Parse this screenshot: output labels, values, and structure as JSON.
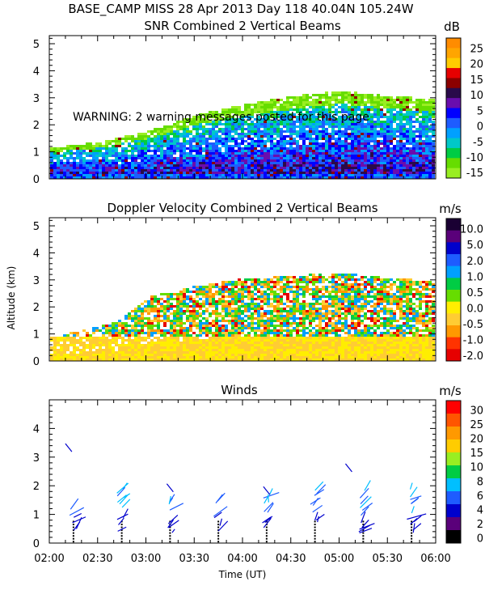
{
  "header": "BASE_CAMP MISS  28 Apr 2013 Day 118 40.04N 105.24W",
  "warning": "WARNING: 2 warning messages posted for this page",
  "y_axis_label": "Altitude (km)",
  "x_axis_label": "Time (UT)",
  "time_ticks": [
    "02:00",
    "02:30",
    "03:00",
    "03:30",
    "04:00",
    "04:30",
    "05:00",
    "05:30",
    "06:00"
  ],
  "chart_data": [
    {
      "type": "heatmap",
      "title": "SNR Combined 2 Vertical Beams",
      "xlabel": "",
      "ylabel": "",
      "x_range": [
        "02:00",
        "06:00"
      ],
      "ylim": [
        0,
        5.3
      ],
      "y_ticks": [
        "0",
        "1",
        "2",
        "3",
        "4",
        "5"
      ],
      "colorbar": {
        "unit": "dB",
        "labels": [
          "25",
          "20",
          "15",
          "10",
          "5",
          "0",
          "-5",
          "-10",
          "-15"
        ],
        "colors": [
          "#ff8c00",
          "#ffa500",
          "#ffcc00",
          "#e60000",
          "#8b0000",
          "#2a0a4a",
          "#6a0dad",
          "#0000ff",
          "#1e5cff",
          "#00a0ff",
          "#00c8c8",
          "#00cc44",
          "#66dd00",
          "#99ee22"
        ]
      },
      "echo_top_km": [
        [
          0,
          1.2
        ],
        [
          0.5,
          1.4
        ],
        [
          1.0,
          1.8
        ],
        [
          1.5,
          2.4
        ],
        [
          2.0,
          2.8
        ],
        [
          2.5,
          3.1
        ],
        [
          3.0,
          3.3
        ],
        [
          3.5,
          3.1
        ],
        [
          4.0,
          3.0
        ]
      ]
    },
    {
      "type": "heatmap",
      "title": "Doppler Velocity Combined 2 Vertical Beams",
      "xlabel": "",
      "ylabel": "Altitude (km)",
      "x_range": [
        "02:00",
        "06:00"
      ],
      "ylim": [
        0,
        5.3
      ],
      "y_ticks": [
        "0",
        "1",
        "2",
        "3",
        "4",
        "5"
      ],
      "colorbar": {
        "unit": "m/s",
        "labels": [
          "10.0",
          "5.0",
          "2.0",
          "1.0",
          "0.5",
          "0.0",
          "-0.5",
          "-1.0",
          "-2.0"
        ],
        "colors": [
          "#1a0033",
          "#5a007a",
          "#0000cc",
          "#1e5cff",
          "#00a0ff",
          "#00cc44",
          "#66dd00",
          "#ffee00",
          "#ffcc33",
          "#ff9900",
          "#ff3300",
          "#e60000"
        ]
      },
      "echo_top_km": [
        [
          0,
          0.9
        ],
        [
          0.7,
          1.5
        ],
        [
          1.0,
          2.4
        ],
        [
          1.5,
          2.8
        ],
        [
          2.0,
          3.1
        ],
        [
          2.5,
          3.2
        ],
        [
          3.0,
          3.3
        ],
        [
          3.5,
          3.1
        ],
        [
          4.0,
          3.0
        ]
      ]
    },
    {
      "type": "scatter",
      "title": "Winds",
      "xlabel": "Time (UT)",
      "ylabel": "",
      "x_range": [
        "02:00",
        "06:00"
      ],
      "ylim": [
        0,
        5.0
      ],
      "y_ticks": [
        "0",
        "1",
        "2",
        "3",
        "4"
      ],
      "colorbar": {
        "unit": "m/s",
        "labels": [
          "30",
          "25",
          "20",
          "15",
          "10",
          "8",
          "6",
          "4",
          "2",
          "0"
        ],
        "colors": [
          "#ff0000",
          "#ff5500",
          "#ff9900",
          "#ffcc00",
          "#99ee22",
          "#00cc44",
          "#00bfff",
          "#1e5cff",
          "#0000cd",
          "#5a007a",
          "#000000"
        ]
      },
      "profile_times_h": [
        0.25,
        0.75,
        1.25,
        1.75,
        2.25,
        2.75,
        3.25,
        3.75
      ]
    }
  ]
}
